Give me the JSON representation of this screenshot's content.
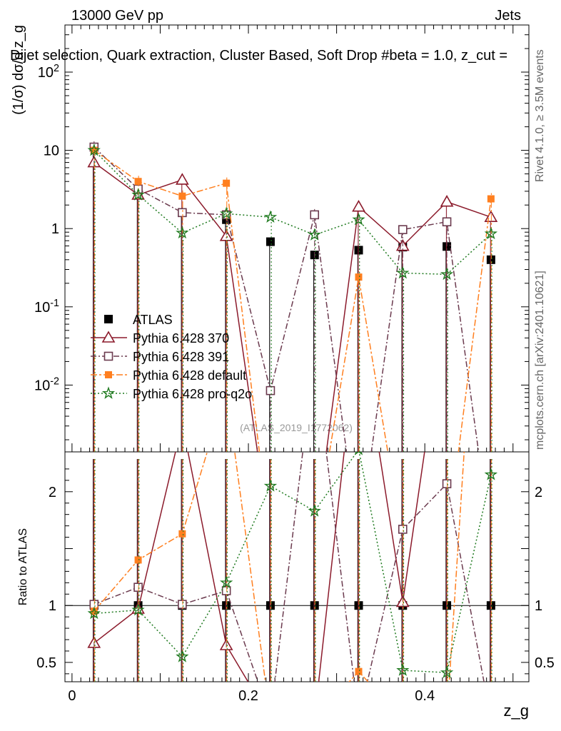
{
  "header": {
    "left": "13000 GeV pp",
    "right": "Jets",
    "title": "Dijet selection, Quark extraction, Cluster Based, Soft Drop #beta = 1.0, z_cut =",
    "side_rivet": "Rivet 4.1.0, ≥ 3.5M events",
    "side_mcplots": "mcplots.cern.ch [arXiv:2401.10621]",
    "watermark": "(ATLAS_2019_I1772062)"
  },
  "chart_data": {
    "type": "scatter",
    "x": [
      0.025,
      0.075,
      0.125,
      0.175,
      0.225,
      0.275,
      0.325,
      0.375,
      0.425,
      0.475
    ],
    "main": {
      "ylabel": "(1/σ) dσ/d z_g",
      "yscale": "log",
      "ylim": [
        0.0014,
        400
      ],
      "yticks": [
        {
          "v": 0.01,
          "label": "10^-2"
        },
        {
          "v": 0.1,
          "label": "10^-1"
        },
        {
          "v": 1,
          "label": "1"
        },
        {
          "v": 10,
          "label": "10"
        },
        {
          "v": 100,
          "label": "10^2"
        }
      ]
    },
    "ratio": {
      "ylabel": "Ratio to ATLAS",
      "ylim": [
        0.33,
        2.35
      ],
      "yticks": [
        {
          "v": 0.5,
          "label": "0.5"
        },
        {
          "v": 1,
          "label": "1"
        },
        {
          "v": 2,
          "label": "2"
        }
      ]
    },
    "xaxis": {
      "label": "z_g",
      "xlim": [
        -0.008,
        0.518
      ],
      "ticks": [
        {
          "v": 0,
          "label": "0"
        },
        {
          "v": 0.2,
          "label": "0.2"
        },
        {
          "v": 0.4,
          "label": "0.4"
        }
      ]
    },
    "series": [
      {
        "name": "ATLAS",
        "role": "data",
        "color": "#000000",
        "marker": "square-filled",
        "dash": "none",
        "values": [
          11.0,
          2.8,
          1.6,
          1.3,
          0.68,
          0.46,
          0.53,
          0.58,
          0.59,
          0.4
        ],
        "ratio": [
          1,
          1,
          1,
          1,
          1,
          1,
          1,
          1,
          1,
          1
        ]
      },
      {
        "name": "Pythia 6.428 370",
        "color": "#8b1a2b",
        "marker": "triangle-open",
        "dash": "none",
        "values": [
          7.0,
          2.7,
          4.2,
          0.8,
          0.0001,
          0.0001,
          1.9,
          0.6,
          2.2,
          1.4
        ],
        "ratio": [
          0.67,
          0.97,
          2.6,
          0.65,
          0.0001,
          0.0001,
          3.5,
          1.03,
          3.7,
          3.5
        ]
      },
      {
        "name": "Pythia 6.428 391",
        "color": "#6b3a4e",
        "marker": "square-open",
        "dash": "8,3,2,3",
        "values": [
          11.0,
          3.2,
          1.6,
          1.5,
          0.0085,
          1.5,
          0.0001,
          0.97,
          1.22,
          0.0001
        ],
        "ratio": [
          1.01,
          1.16,
          1.01,
          1.13,
          0.0125,
          3.2,
          0.0001,
          1.67,
          2.07,
          0.0001
        ]
      },
      {
        "name": "Pythia 6.428 default",
        "color": "#ff7f1f",
        "marker": "square-filled-small",
        "dash": "9,3,3,3",
        "values": [
          10.0,
          4.0,
          2.6,
          3.8,
          0.0001,
          0.0001,
          0.24,
          0.0001,
          0.0001,
          2.4
        ],
        "ratio": [
          0.95,
          1.4,
          1.63,
          2.9,
          0.0001,
          0.0001,
          0.42,
          0.0001,
          0.0001,
          6.0
        ]
      },
      {
        "name": "Pythia 6.428 pro-q2o",
        "color": "#1f7a1f",
        "marker": "star",
        "dash": "2,3",
        "values": [
          10.0,
          2.7,
          0.88,
          1.55,
          1.4,
          0.83,
          1.3,
          0.27,
          0.26,
          0.86
        ],
        "ratio": [
          0.93,
          0.96,
          0.55,
          1.2,
          2.05,
          1.83,
          2.37,
          0.43,
          0.41,
          2.15
        ]
      }
    ]
  }
}
